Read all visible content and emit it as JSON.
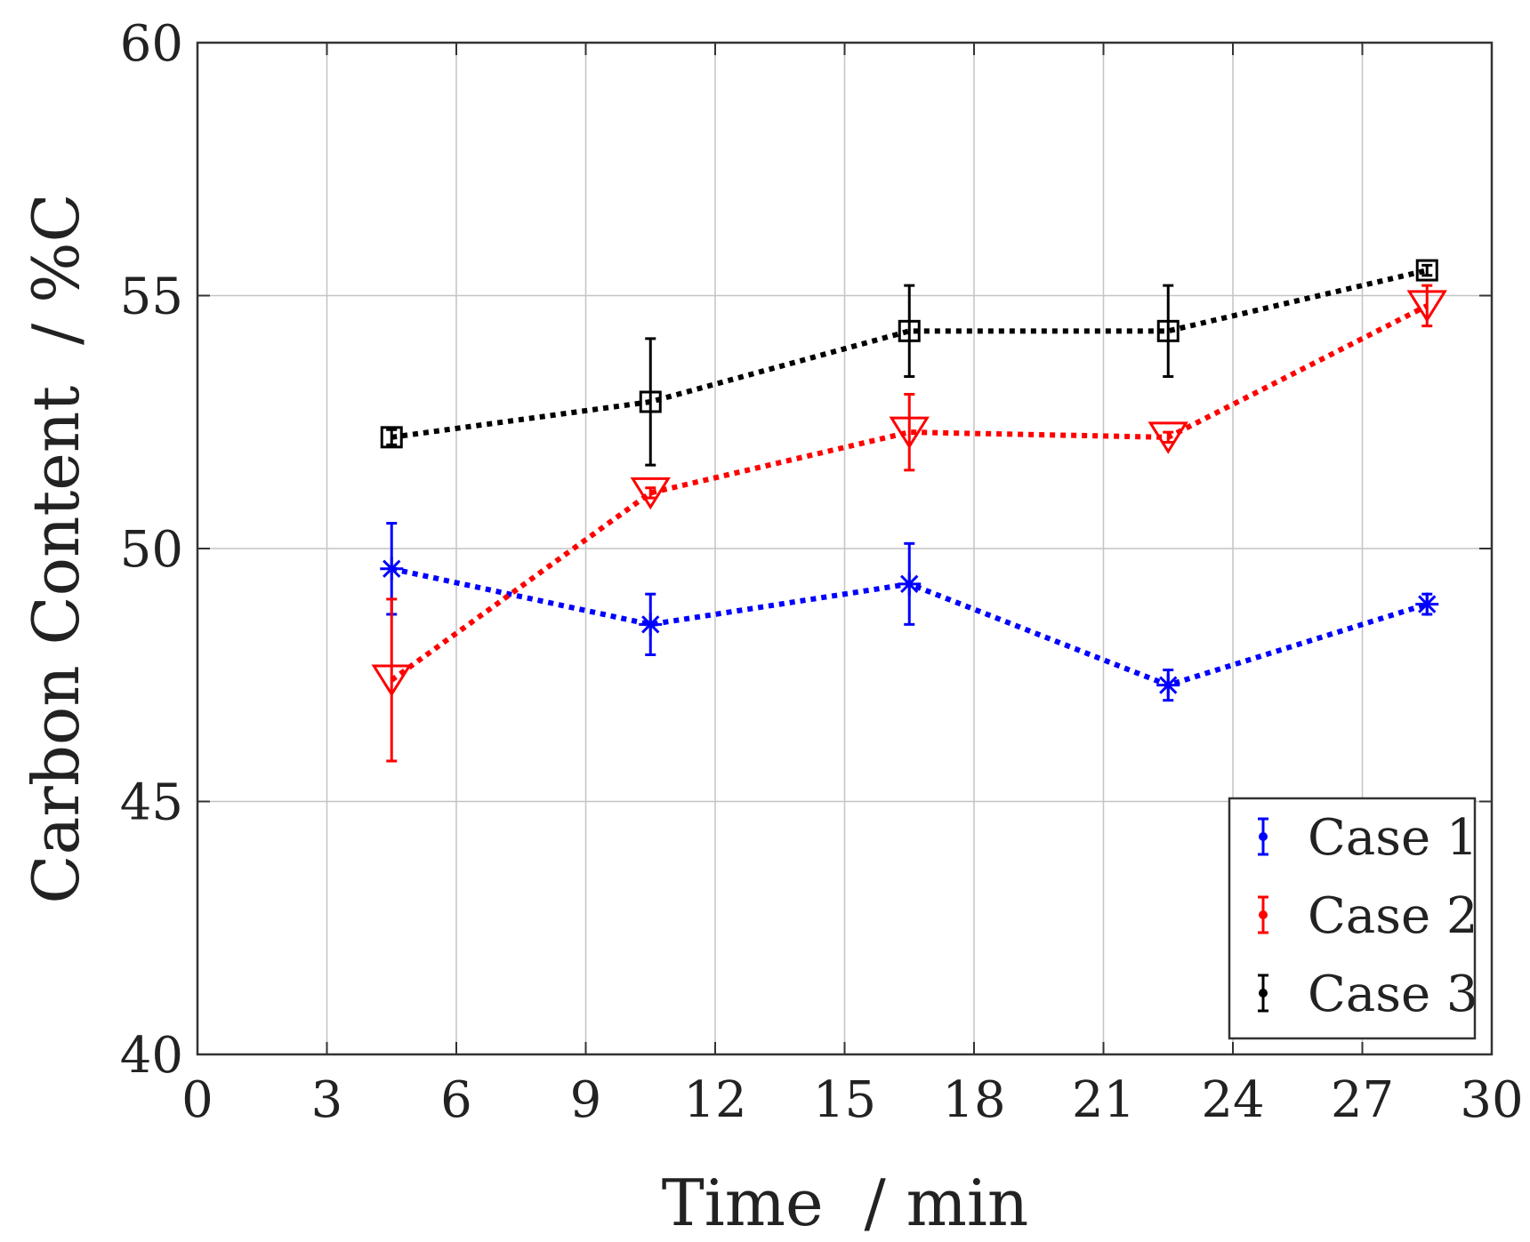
{
  "chart_data": {
    "type": "line",
    "title": "",
    "xlabel": "Time  / min",
    "ylabel": "Carbon Content  / %C",
    "xlim": [
      0,
      30
    ],
    "ylim": [
      40,
      60
    ],
    "xticks": [
      0,
      3,
      6,
      9,
      12,
      15,
      18,
      21,
      24,
      27,
      30
    ],
    "yticks": [
      40,
      45,
      50,
      55,
      60
    ],
    "grid": true,
    "legend_position": "bottom-right",
    "x": [
      4.5,
      10.5,
      16.5,
      22.5,
      28.5
    ],
    "series": [
      {
        "name": "Case 1",
        "color": "#0000ff",
        "marker": "asterisk",
        "values": [
          49.6,
          48.5,
          49.3,
          47.3,
          48.9
        ],
        "errors": [
          0.9,
          0.6,
          0.8,
          0.3,
          0.2
        ]
      },
      {
        "name": "Case 2",
        "color": "#ff0000",
        "marker": "triangle-down",
        "values": [
          47.4,
          51.1,
          52.3,
          52.2,
          54.8
        ],
        "errors": [
          1.6,
          0.1,
          0.75,
          0.1,
          0.4
        ]
      },
      {
        "name": "Case 3",
        "color": "#000000",
        "marker": "square",
        "values": [
          52.2,
          52.9,
          54.3,
          54.3,
          55.5
        ],
        "errors": [
          0.15,
          1.25,
          0.9,
          0.9,
          0.1
        ]
      }
    ]
  }
}
